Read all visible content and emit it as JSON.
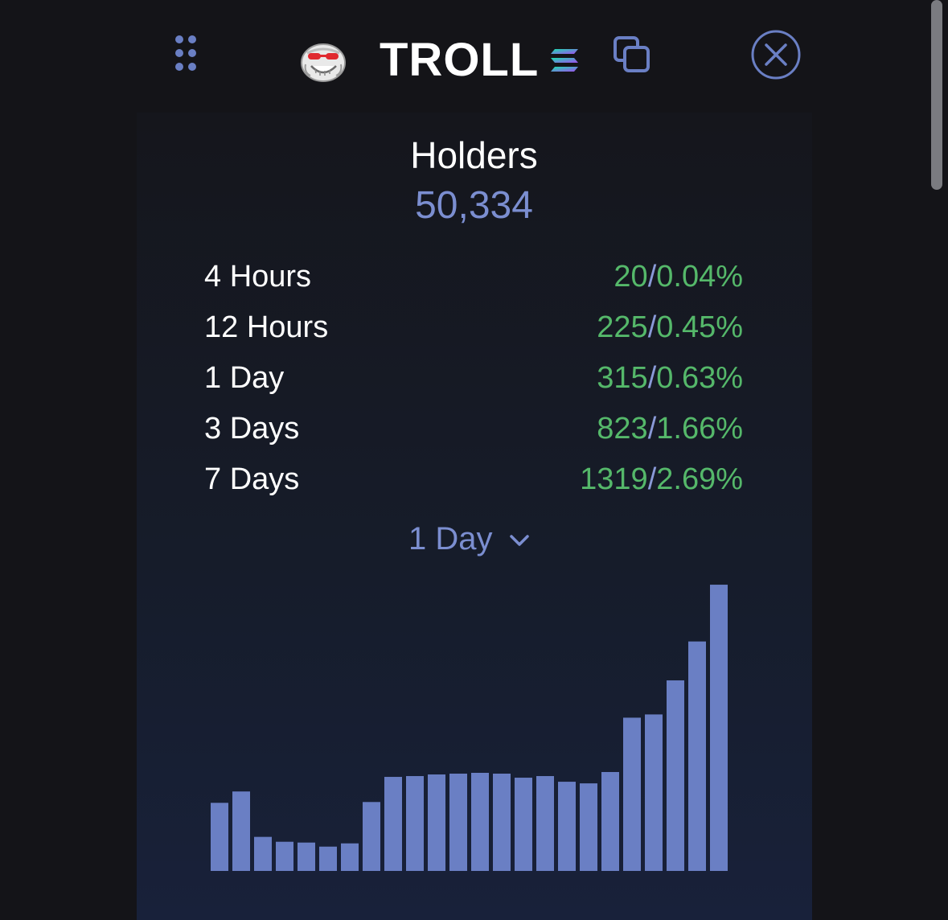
{
  "header": {
    "token_symbol": "TROLL",
    "logo_icon": "troll-face-logo",
    "chain_icon": "solana-icon",
    "copy_icon": "copy-icon",
    "close_icon": "close-circle-icon",
    "drag_icon": "drag-handle-icon"
  },
  "holders": {
    "title": "Holders",
    "count": "50,334"
  },
  "stats": [
    {
      "label": "4 Hours",
      "count": "20",
      "percent": "0.04%"
    },
    {
      "label": "12 Hours",
      "count": "225",
      "percent": "0.45%"
    },
    {
      "label": "1 Day",
      "count": "315",
      "percent": "0.63%"
    },
    {
      "label": "3 Days",
      "count": "823",
      "percent": "1.66%"
    },
    {
      "label": "7 Days",
      "count": "1319",
      "percent": "2.69%"
    }
  ],
  "period_select": {
    "value": "1 Day"
  },
  "colors": {
    "background": "#141418",
    "accent": "#7b8ed0",
    "positive": "#55b86a",
    "bar": "#6a7fc4",
    "text": "#ffffff"
  },
  "chart_data": {
    "type": "bar",
    "values": [
      84,
      98,
      42,
      36,
      35,
      30,
      34,
      85,
      116,
      117,
      119,
      120,
      121,
      120,
      115,
      117,
      110,
      108,
      122,
      189,
      193,
      235,
      283,
      353
    ],
    "ylim": [
      0,
      360
    ]
  }
}
